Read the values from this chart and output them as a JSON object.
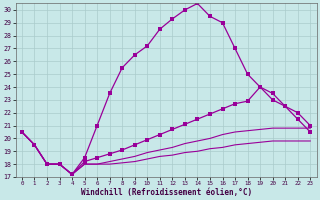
{
  "xlabel": "Windchill (Refroidissement éolien,°C)",
  "background_color": "#c8e8e8",
  "line_color": "#990099",
  "grid_color": "#aacccc",
  "xlim": [
    -0.5,
    23.5
  ],
  "ylim": [
    17,
    30.5
  ],
  "xticks": [
    0,
    1,
    2,
    3,
    4,
    5,
    6,
    7,
    8,
    9,
    10,
    11,
    12,
    13,
    14,
    15,
    16,
    17,
    18,
    19,
    20,
    21,
    22,
    23
  ],
  "yticks": [
    17,
    18,
    19,
    20,
    21,
    22,
    23,
    24,
    25,
    26,
    27,
    28,
    29,
    30
  ],
  "line1_x": [
    0,
    1,
    2,
    3,
    4,
    5,
    6,
    7,
    8,
    9,
    10,
    11,
    12,
    13,
    14,
    15,
    16,
    17,
    18,
    19,
    20,
    21,
    22,
    23
  ],
  "line1_y": [
    20.5,
    19.5,
    18.0,
    18.0,
    17.2,
    18.5,
    21.0,
    23.5,
    25.5,
    26.5,
    27.2,
    28.5,
    29.3,
    30.0,
    30.5,
    29.5,
    29.0,
    27.0,
    25.0,
    24.0,
    23.5,
    22.5,
    21.5,
    20.5
  ],
  "line2_x": [
    0,
    1,
    2,
    3,
    4,
    5,
    6,
    7,
    8,
    9,
    10,
    11,
    12,
    13,
    14,
    15,
    16,
    17,
    18,
    19,
    20,
    21,
    22,
    23
  ],
  "line2_y": [
    20.5,
    19.5,
    18.0,
    18.0,
    17.2,
    18.2,
    18.5,
    18.8,
    19.1,
    19.5,
    19.9,
    20.3,
    20.7,
    21.1,
    21.5,
    21.9,
    22.3,
    22.7,
    22.9,
    24.0,
    23.0,
    22.5,
    22.0,
    21.0
  ],
  "line3_x": [
    0,
    1,
    2,
    3,
    4,
    5,
    6,
    7,
    8,
    9,
    10,
    11,
    12,
    13,
    14,
    15,
    16,
    17,
    18,
    19,
    20,
    21,
    22,
    23
  ],
  "line3_y": [
    20.5,
    19.5,
    18.0,
    18.0,
    17.2,
    18.0,
    18.0,
    18.2,
    18.4,
    18.6,
    18.9,
    19.1,
    19.3,
    19.6,
    19.8,
    20.0,
    20.3,
    20.5,
    20.6,
    20.7,
    20.8,
    20.8,
    20.8,
    20.8
  ],
  "line4_x": [
    0,
    1,
    2,
    3,
    4,
    5,
    6,
    7,
    8,
    9,
    10,
    11,
    12,
    13,
    14,
    15,
    16,
    17,
    18,
    19,
    20,
    21,
    22,
    23
  ],
  "line4_y": [
    20.5,
    19.5,
    18.0,
    18.0,
    17.2,
    18.0,
    18.0,
    18.0,
    18.1,
    18.2,
    18.4,
    18.6,
    18.7,
    18.9,
    19.0,
    19.2,
    19.3,
    19.5,
    19.6,
    19.7,
    19.8,
    19.8,
    19.8,
    19.8
  ]
}
